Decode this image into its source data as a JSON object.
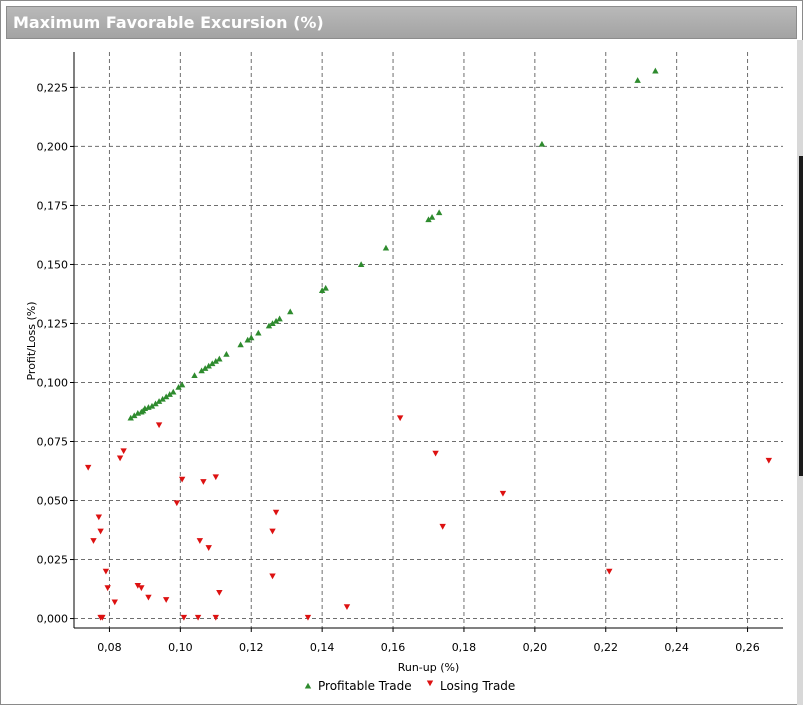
{
  "window": {
    "title": "Maximum Favorable Excursion (%)"
  },
  "colors": {
    "profit": "#2e8b2e",
    "loss": "#dd1111",
    "grid": "#6e6e6e",
    "axis": "#000000"
  },
  "chart_data": {
    "type": "scatter",
    "title": "Maximum Favorable Excursion (%)",
    "xlabel": "Run-up (%)",
    "ylabel": "Profit/Loss (%)",
    "xlim": [
      0.07,
      0.27
    ],
    "ylim": [
      -0.004,
      0.24
    ],
    "x_ticks": [
      0.08,
      0.1,
      0.12,
      0.14,
      0.16,
      0.18,
      0.2,
      0.22,
      0.24,
      0.26
    ],
    "x_tick_labels": [
      "0,08",
      "0,10",
      "0,12",
      "0,14",
      "0,16",
      "0,18",
      "0,20",
      "0,22",
      "0,24",
      "0,26"
    ],
    "y_ticks": [
      0.0,
      0.025,
      0.05,
      0.075,
      0.1,
      0.125,
      0.15,
      0.175,
      0.2,
      0.225
    ],
    "y_tick_labels": [
      "0,000",
      "0,025",
      "0,050",
      "0,075",
      "0,100",
      "0,125",
      "0,150",
      "0,175",
      "0,200",
      "0,225"
    ],
    "grid": true,
    "legend_position": "bottom-center",
    "series": [
      {
        "name": "Profitable Trade",
        "marker": "triangle-up",
        "color": "#2e8b2e",
        "points": [
          [
            0.086,
            0.085
          ],
          [
            0.087,
            0.086
          ],
          [
            0.088,
            0.087
          ],
          [
            0.089,
            0.0875
          ],
          [
            0.0895,
            0.088
          ],
          [
            0.09,
            0.089
          ],
          [
            0.091,
            0.0895
          ],
          [
            0.092,
            0.09
          ],
          [
            0.093,
            0.091
          ],
          [
            0.094,
            0.092
          ],
          [
            0.095,
            0.093
          ],
          [
            0.096,
            0.094
          ],
          [
            0.097,
            0.095
          ],
          [
            0.098,
            0.096
          ],
          [
            0.0995,
            0.098
          ],
          [
            0.1005,
            0.099
          ],
          [
            0.104,
            0.103
          ],
          [
            0.106,
            0.105
          ],
          [
            0.107,
            0.106
          ],
          [
            0.108,
            0.107
          ],
          [
            0.109,
            0.108
          ],
          [
            0.11,
            0.109
          ],
          [
            0.111,
            0.11
          ],
          [
            0.113,
            0.112
          ],
          [
            0.117,
            0.116
          ],
          [
            0.119,
            0.118
          ],
          [
            0.12,
            0.119
          ],
          [
            0.122,
            0.121
          ],
          [
            0.125,
            0.124
          ],
          [
            0.126,
            0.125
          ],
          [
            0.127,
            0.126
          ],
          [
            0.128,
            0.127
          ],
          [
            0.131,
            0.13
          ],
          [
            0.14,
            0.139
          ],
          [
            0.141,
            0.14
          ],
          [
            0.151,
            0.15
          ],
          [
            0.158,
            0.157
          ],
          [
            0.17,
            0.169
          ],
          [
            0.171,
            0.17
          ],
          [
            0.173,
            0.172
          ],
          [
            0.202,
            0.201
          ],
          [
            0.229,
            0.228
          ],
          [
            0.234,
            0.232
          ]
        ]
      },
      {
        "name": "Losing Trade",
        "marker": "triangle-down",
        "color": "#dd1111",
        "points": [
          [
            0.074,
            0.064
          ],
          [
            0.0755,
            0.033
          ],
          [
            0.077,
            0.043
          ],
          [
            0.0775,
            0.037
          ],
          [
            0.0775,
            0.0005
          ],
          [
            0.078,
            0.0005
          ],
          [
            0.079,
            0.02
          ],
          [
            0.0795,
            0.013
          ],
          [
            0.0815,
            0.007
          ],
          [
            0.083,
            0.068
          ],
          [
            0.084,
            0.071
          ],
          [
            0.088,
            0.014
          ],
          [
            0.089,
            0.013
          ],
          [
            0.091,
            0.009
          ],
          [
            0.094,
            0.082
          ],
          [
            0.096,
            0.008
          ],
          [
            0.099,
            0.049
          ],
          [
            0.1005,
            0.059
          ],
          [
            0.101,
            0.0005
          ],
          [
            0.105,
            0.0005
          ],
          [
            0.1055,
            0.033
          ],
          [
            0.1065,
            0.058
          ],
          [
            0.108,
            0.03
          ],
          [
            0.11,
            0.0005
          ],
          [
            0.11,
            0.06
          ],
          [
            0.111,
            0.011
          ],
          [
            0.126,
            0.037
          ],
          [
            0.126,
            0.018
          ],
          [
            0.127,
            0.045
          ],
          [
            0.136,
            0.0005
          ],
          [
            0.147,
            0.005
          ],
          [
            0.162,
            0.085
          ],
          [
            0.172,
            0.07
          ],
          [
            0.174,
            0.039
          ],
          [
            0.191,
            0.053
          ],
          [
            0.221,
            0.02
          ],
          [
            0.266,
            0.067
          ]
        ]
      }
    ]
  }
}
